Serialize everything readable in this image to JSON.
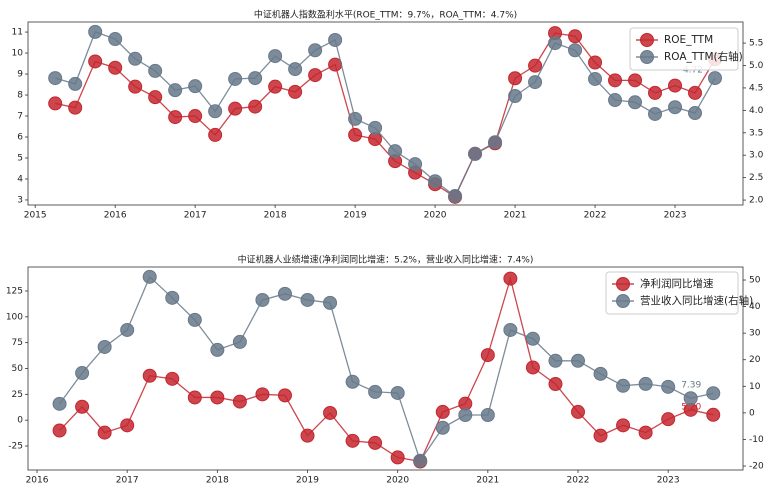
{
  "chart_data": [
    {
      "type": "line",
      "title": "中证机器人指数盈利水平(ROE_TTM：9.7%，ROA_TTM：4.7%)",
      "x": [
        2015.25,
        2015.5,
        2015.75,
        2016,
        2016.25,
        2016.5,
        2016.75,
        2017,
        2017.25,
        2017.5,
        2017.75,
        2018,
        2018.25,
        2018.5,
        2018.75,
        2019,
        2019.25,
        2019.5,
        2019.75,
        2020,
        2020.25,
        2020.5,
        2020.75,
        2021,
        2021.25,
        2021.5,
        2021.75,
        2022,
        2022.25,
        2022.5,
        2022.75,
        2023,
        2023.25,
        2023.5
      ],
      "xlim": [
        2014.91,
        2023.85
      ],
      "xticks": [
        2015,
        2016,
        2017,
        2018,
        2019,
        2020,
        2021,
        2022,
        2023
      ],
      "ylim": [
        2.76,
        11.48
      ],
      "yticks": [
        3,
        4,
        5,
        6,
        7,
        8,
        9,
        10,
        11
      ],
      "y2lim": [
        1.89,
        5.97
      ],
      "y2ticks": [
        {
          "value": 2,
          "label": "2.0"
        },
        {
          "value": 2.5,
          "label": "2.5"
        },
        {
          "value": 3,
          "label": "3.0"
        },
        {
          "value": 3.5,
          "label": "3.5"
        },
        {
          "value": 4,
          "label": "4.0"
        },
        {
          "value": 4.5,
          "label": "4.5"
        },
        {
          "value": 5,
          "label": "5.0"
        },
        {
          "value": 5.5,
          "label": "5.5"
        }
      ],
      "legend": "upper right",
      "series": [
        {
          "name": "ROE_TTM",
          "color": "#c4262e",
          "axis": "y",
          "values": [
            7.6,
            7.4,
            9.6,
            9.3,
            8.4,
            7.9,
            6.95,
            7.0,
            6.1,
            7.35,
            7.45,
            8.4,
            8.15,
            8.95,
            9.45,
            6.1,
            5.9,
            4.85,
            4.3,
            3.75,
            3.15,
            5.2,
            5.7,
            8.8,
            9.4,
            10.95,
            10.8,
            9.55,
            8.7,
            8.7,
            8.1,
            8.45,
            8.1,
            9.7
          ]
        },
        {
          "name": "ROA_TTM(右轴)",
          "color": "#66788a",
          "axis": "y2",
          "values": [
            4.72,
            4.59,
            5.75,
            5.59,
            5.15,
            4.88,
            4.45,
            4.54,
            3.98,
            4.7,
            4.72,
            5.21,
            4.92,
            5.34,
            5.57,
            3.81,
            3.61,
            3.09,
            2.8,
            2.42,
            2.09,
            3.03,
            3.29,
            4.32,
            4.63,
            5.5,
            5.34,
            4.7,
            4.23,
            4.18,
            3.92,
            4.07,
            3.94,
            4.72
          ],
          "value_labels": [
            null,
            null,
            null,
            null,
            null,
            null,
            null,
            null,
            null,
            null,
            null,
            null,
            null,
            null,
            null,
            null,
            null,
            null,
            null,
            null,
            null,
            null,
            null,
            null,
            null,
            null,
            null,
            null,
            null,
            null,
            null,
            null,
            null,
            "4.72"
          ]
        }
      ]
    },
    {
      "type": "line",
      "title": "中证机器人业绩增速(净利润同比增速：5.2%，营业收入同比增速：7.4%)",
      "x": [
        2016.25,
        2016.5,
        2016.75,
        2017,
        2017.25,
        2017.5,
        2017.75,
        2018,
        2018.25,
        2018.5,
        2018.75,
        2019,
        2019.25,
        2019.5,
        2019.75,
        2020,
        2020.25,
        2020.5,
        2020.75,
        2021,
        2021.25,
        2021.5,
        2021.75,
        2022,
        2022.25,
        2022.5,
        2022.75,
        2023,
        2023.25,
        2023.5
      ],
      "xlim": [
        2015.9,
        2023.83
      ],
      "xticks": [
        2016,
        2017,
        2018,
        2019,
        2020,
        2021,
        2022,
        2023
      ],
      "ylim": [
        -48.2,
        148.2
      ],
      "yticks": [
        -25,
        0,
        25,
        50,
        75,
        100,
        125
      ],
      "y2lim": [
        -21.5,
        54.9
      ],
      "y2ticks": [
        -20,
        -10,
        0,
        10,
        20,
        30,
        40,
        50
      ],
      "legend": "upper right",
      "series": [
        {
          "name": "净利润同比增速",
          "color": "#c4262e",
          "axis": "y",
          "values": [
            -10,
            13,
            -12,
            -5,
            43,
            40,
            22,
            22,
            18,
            25,
            24,
            -15,
            7,
            -20,
            -22,
            -36,
            -40,
            8,
            16,
            63,
            137,
            51,
            35,
            8,
            -15,
            -5,
            -12,
            1,
            10,
            5.2
          ],
          "value_labels": [
            null,
            null,
            null,
            null,
            null,
            null,
            null,
            null,
            null,
            null,
            null,
            null,
            null,
            null,
            null,
            null,
            null,
            null,
            null,
            null,
            null,
            null,
            null,
            null,
            null,
            null,
            null,
            null,
            null,
            "5.20"
          ]
        },
        {
          "name": "营业收入同比增速(右轴)",
          "color": "#66788a",
          "axis": "y2",
          "values": [
            3.4,
            15,
            24.8,
            31.2,
            51.2,
            43.3,
            35,
            23.7,
            26.7,
            42.5,
            44.8,
            42.5,
            41.4,
            11.7,
            7.9,
            7.5,
            -18,
            -5.6,
            -0.8,
            -0.8,
            31.2,
            27.9,
            19.6,
            19.6,
            14.7,
            10.2,
            10.9,
            9.8,
            5.5,
            7.39
          ],
          "value_labels": [
            null,
            null,
            null,
            null,
            null,
            null,
            null,
            null,
            null,
            null,
            null,
            null,
            null,
            null,
            null,
            null,
            null,
            null,
            null,
            null,
            null,
            null,
            null,
            null,
            null,
            null,
            null,
            null,
            null,
            "7.39"
          ]
        }
      ]
    }
  ]
}
